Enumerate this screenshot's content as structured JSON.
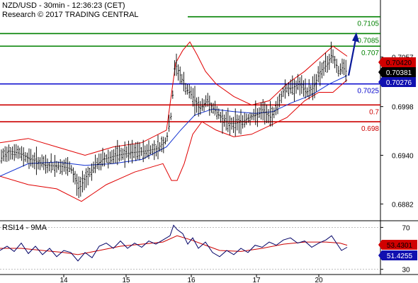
{
  "header": {
    "title": "NZD/USD - 30min - 12:36:23 (CET)",
    "subtitle": "Research © 2017 TRADING CENTRAL"
  },
  "rsi_panel": {
    "title": "RSI14 - 9MA"
  },
  "colors": {
    "price": "#000000",
    "bollinger": "#e00000",
    "ma": "#1030d0",
    "resistance": "#008000",
    "pivot": "#0000cc",
    "support": "#cc0000",
    "arrow": "#0a1a9a",
    "rsi": "#000066",
    "rsi_ma": "#cc0000",
    "badge_red": "#d00000",
    "badge_dark": "#000000",
    "badge_blue": "#1010b0"
  },
  "chart_data": [
    {
      "type": "line",
      "subtype": "ohlc-bar",
      "title": "NZD/USD - 30min",
      "x_ticks": [
        "14",
        "15",
        "16",
        "17",
        "20"
      ],
      "y_ticks": [
        0.6882,
        0.694,
        0.6998,
        0.7057
      ],
      "ylim": [
        0.6862,
        0.7125
      ],
      "levels": [
        {
          "label": "0.7105",
          "value": 0.7105,
          "role": "resistance"
        },
        {
          "label": "0.7085",
          "value": 0.7085,
          "role": "resistance"
        },
        {
          "label": "0.707",
          "value": 0.707,
          "role": "resistance"
        },
        {
          "label": "0.7025",
          "value": 0.7025,
          "role": "pivot"
        },
        {
          "label": "0.7",
          "value": 0.7,
          "role": "support"
        },
        {
          "label": "0.698",
          "value": 0.698,
          "role": "support"
        }
      ],
      "badges": [
        {
          "label": "0.70420",
          "value": 0.7042,
          "style": "red"
        },
        {
          "label": "0.70381",
          "value": 0.70381,
          "style": "dark"
        },
        {
          "label": "0.70276",
          "value": 0.70276,
          "style": "blue"
        }
      ],
      "arrow": {
        "from": 0.7035,
        "to": 0.7085,
        "direction": "up"
      },
      "price_path": [
        [
          0,
          0.6935
        ],
        [
          12,
          0.6945
        ],
        [
          25,
          0.6943
        ],
        [
          45,
          0.6935
        ],
        [
          65,
          0.6928
        ],
        [
          85,
          0.6927
        ],
        [
          100,
          0.6924
        ],
        [
          112,
          0.69
        ],
        [
          120,
          0.6913
        ],
        [
          132,
          0.6925
        ],
        [
          145,
          0.6935
        ],
        [
          165,
          0.694
        ],
        [
          185,
          0.6943
        ],
        [
          205,
          0.6945
        ],
        [
          222,
          0.6948
        ],
        [
          235,
          0.6958
        ],
        [
          242,
          0.699
        ],
        [
          247,
          0.705
        ],
        [
          252,
          0.704
        ],
        [
          262,
          0.702
        ],
        [
          272,
          0.701
        ],
        [
          282,
          0.6995
        ],
        [
          292,
          0.7005
        ],
        [
          302,
          0.6995
        ],
        [
          312,
          0.6985
        ],
        [
          322,
          0.6978
        ],
        [
          332,
          0.6978
        ],
        [
          342,
          0.698
        ],
        [
          352,
          0.6985
        ],
        [
          362,
          0.6988
        ],
        [
          372,
          0.6992
        ],
        [
          382,
          0.6985
        ],
        [
          392,
          0.7
        ],
        [
          402,
          0.702
        ],
        [
          412,
          0.702
        ],
        [
          422,
          0.7025
        ],
        [
          432,
          0.7015
        ],
        [
          442,
          0.702
        ],
        [
          452,
          0.704
        ],
        [
          462,
          0.7048
        ],
        [
          468,
          0.706
        ],
        [
          472,
          0.7055
        ],
        [
          478,
          0.704
        ],
        [
          484,
          0.7045
        ],
        [
          490,
          0.7038
        ]
      ],
      "bollinger_upper": [
        [
          0,
          0.6955
        ],
        [
          40,
          0.696
        ],
        [
          80,
          0.695
        ],
        [
          120,
          0.694
        ],
        [
          160,
          0.695
        ],
        [
          200,
          0.6955
        ],
        [
          235,
          0.697
        ],
        [
          248,
          0.705
        ],
        [
          258,
          0.7065
        ],
        [
          268,
          0.7075
        ],
        [
          278,
          0.706
        ],
        [
          290,
          0.704
        ],
        [
          305,
          0.7025
        ],
        [
          330,
          0.701
        ],
        [
          355,
          0.7
        ],
        [
          380,
          0.7005
        ],
        [
          405,
          0.7025
        ],
        [
          430,
          0.704
        ],
        [
          450,
          0.7055
        ],
        [
          470,
          0.707
        ],
        [
          490,
          0.7058
        ]
      ],
      "bollinger_lower": [
        [
          0,
          0.6915
        ],
        [
          40,
          0.6905
        ],
        [
          80,
          0.69
        ],
        [
          115,
          0.6885
        ],
        [
          150,
          0.6905
        ],
        [
          190,
          0.692
        ],
        [
          230,
          0.693
        ],
        [
          242,
          0.691
        ],
        [
          250,
          0.691
        ],
        [
          260,
          0.693
        ],
        [
          272,
          0.6965
        ],
        [
          285,
          0.698
        ],
        [
          305,
          0.697
        ],
        [
          330,
          0.6962
        ],
        [
          355,
          0.6965
        ],
        [
          380,
          0.6975
        ],
        [
          405,
          0.6985
        ],
        [
          430,
          0.7005
        ],
        [
          450,
          0.7015
        ],
        [
          470,
          0.7015
        ],
        [
          490,
          0.703
        ]
      ],
      "moving_average": [
        [
          0,
          0.6915
        ],
        [
          40,
          0.693
        ],
        [
          80,
          0.6932
        ],
        [
          120,
          0.6928
        ],
        [
          160,
          0.693
        ],
        [
          200,
          0.6935
        ],
        [
          235,
          0.695
        ],
        [
          255,
          0.697
        ],
        [
          275,
          0.6988
        ],
        [
          300,
          0.6995
        ],
        [
          330,
          0.6992
        ],
        [
          360,
          0.699
        ],
        [
          385,
          0.6992
        ],
        [
          410,
          0.7002
        ],
        [
          440,
          0.7012
        ],
        [
          465,
          0.7025
        ],
        [
          490,
          0.7035
        ]
      ]
    },
    {
      "type": "line",
      "title": "RSI14 - 9MA",
      "y_ticks": [
        70,
        30
      ],
      "ylim": [
        25,
        75
      ],
      "badges": [
        {
          "label": "53.4301",
          "value": 53.4301,
          "style": "red"
        },
        {
          "label": "51.4255",
          "value": 51.4255,
          "style": "blue"
        }
      ],
      "series": [
        {
          "values": [
            [
              0,
              48
            ],
            [
              10,
              52
            ],
            [
              20,
              47
            ],
            [
              30,
              55
            ],
            [
              40,
              45
            ],
            [
              50,
              52
            ],
            [
              60,
              44
            ],
            [
              70,
              50
            ],
            [
              80,
              42
            ],
            [
              90,
              48
            ],
            [
              100,
              46
            ],
            [
              110,
              38
            ],
            [
              120,
              46
            ],
            [
              130,
              41
            ],
            [
              140,
              52
            ],
            [
              150,
              55
            ],
            [
              160,
              50
            ],
            [
              170,
              57
            ],
            [
              180,
              50
            ],
            [
              190,
              55
            ],
            [
              200,
              51
            ],
            [
              210,
              57
            ],
            [
              220,
              54
            ],
            [
              230,
              58
            ],
            [
              240,
              62
            ],
            [
              245,
              72
            ],
            [
              250,
              68
            ],
            [
              258,
              64
            ],
            [
              265,
              54
            ],
            [
              272,
              60
            ],
            [
              280,
              50
            ],
            [
              290,
              56
            ],
            [
              300,
              46
            ],
            [
              310,
              42
            ],
            [
              320,
              48
            ],
            [
              330,
              44
            ],
            [
              340,
              50
            ],
            [
              350,
              46
            ],
            [
              360,
              53
            ],
            [
              370,
              51
            ],
            [
              380,
              56
            ],
            [
              390,
              53
            ],
            [
              400,
              58
            ],
            [
              410,
              60
            ],
            [
              420,
              55
            ],
            [
              430,
              57
            ],
            [
              440,
              51
            ],
            [
              450,
              55
            ],
            [
              460,
              58
            ],
            [
              468,
              62
            ],
            [
              475,
              55
            ],
            [
              482,
              48
            ],
            [
              490,
              51
            ]
          ]
        },
        {
          "values": [
            [
              0,
              50
            ],
            [
              30,
              50
            ],
            [
              60,
              48
            ],
            [
              90,
              46
            ],
            [
              110,
              44
            ],
            [
              140,
              48
            ],
            [
              170,
              52
            ],
            [
              200,
              54
            ],
            [
              230,
              56
            ],
            [
              250,
              62
            ],
            [
              270,
              58
            ],
            [
              290,
              53
            ],
            [
              310,
              48
            ],
            [
              340,
              47
            ],
            [
              370,
              50
            ],
            [
              400,
              54
            ],
            [
              430,
              56
            ],
            [
              460,
              56
            ],
            [
              480,
              55
            ],
            [
              490,
              53
            ]
          ]
        }
      ]
    }
  ]
}
